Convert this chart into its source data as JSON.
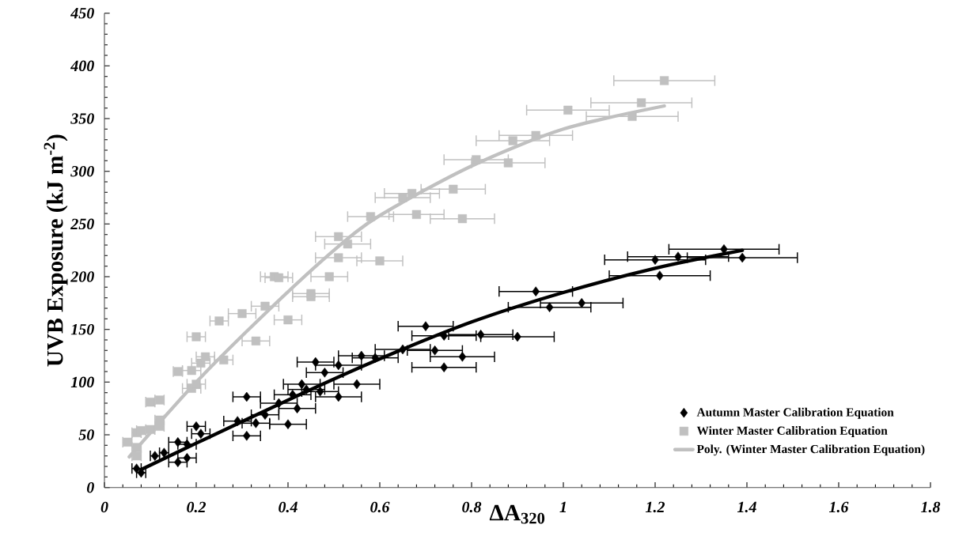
{
  "chart_data": {
    "type": "scatter",
    "xlabel": "ΔA$_{320}$",
    "ylabel": "UVB Exposure (kJ m$^{-2}$)",
    "xlim": [
      0,
      1.8
    ],
    "xticks": [
      0,
      0.2,
      0.4,
      0.6,
      0.8,
      1,
      1.2,
      1.4,
      1.6,
      1.8
    ],
    "ylim": [
      0,
      450
    ],
    "yticks": [
      0,
      50,
      100,
      150,
      200,
      250,
      300,
      350,
      400,
      450
    ],
    "legend": "bottom right",
    "series": [
      {
        "name": "Autumn Master Calibration Equation",
        "type": "scatter",
        "marker": "diamond",
        "color": "#000000",
        "x": [
          0.07,
          0.08,
          0.11,
          0.13,
          0.16,
          0.18,
          0.16,
          0.18,
          0.2,
          0.21,
          0.29,
          0.31,
          0.31,
          0.33,
          0.35,
          0.38,
          0.4,
          0.41,
          0.42,
          0.43,
          0.44,
          0.46,
          0.48,
          0.47,
          0.51,
          0.51,
          0.55,
          0.56,
          0.59,
          0.7,
          0.74,
          0.82,
          0.9,
          0.65,
          0.72,
          0.78,
          0.74,
          0.94,
          0.97,
          1.04,
          1.2,
          1.25,
          1.21,
          1.35,
          1.39
        ],
        "values": [
          18,
          14,
          30,
          33,
          43,
          41,
          24,
          28,
          58,
          51,
          63,
          86,
          49,
          61,
          69,
          80,
          60,
          88,
          75,
          98,
          93,
          119,
          109,
          91,
          86,
          116,
          98,
          125,
          123,
          153,
          144,
          145,
          143,
          131,
          130,
          124,
          114,
          186,
          171,
          175,
          216,
          219,
          201,
          226,
          218
        ],
        "xerrors": [
          0.01,
          0.01,
          0.01,
          0.01,
          0.02,
          0.02,
          0.02,
          0.02,
          0.02,
          0.02,
          0.03,
          0.03,
          0.03,
          0.03,
          0.03,
          0.04,
          0.04,
          0.04,
          0.04,
          0.04,
          0.04,
          0.04,
          0.04,
          0.04,
          0.05,
          0.05,
          0.05,
          0.05,
          0.05,
          0.06,
          0.07,
          0.07,
          0.08,
          0.06,
          0.06,
          0.07,
          0.07,
          0.08,
          0.09,
          0.09,
          0.11,
          0.11,
          0.11,
          0.12,
          0.12
        ]
      },
      {
        "name": "Winter Master Calibration Equation",
        "type": "scatter",
        "marker": "square",
        "color": "#c0c0c0",
        "x": [
          0.05,
          0.07,
          0.08,
          0.07,
          0.07,
          0.1,
          0.12,
          0.12,
          0.1,
          0.12,
          0.16,
          0.2,
          0.19,
          0.2,
          0.19,
          0.21,
          0.22,
          0.26,
          0.25,
          0.3,
          0.33,
          0.35,
          0.4,
          0.37,
          0.38,
          0.45,
          0.45,
          0.49,
          0.51,
          0.51,
          0.53,
          0.6,
          0.58,
          0.68,
          0.78,
          0.65,
          0.67,
          0.76,
          1.22,
          1.17,
          1.15,
          1.01,
          0.94,
          0.89,
          0.81,
          0.88
        ],
        "values": [
          43,
          52,
          54,
          38,
          30,
          55,
          64,
          58,
          81,
          83,
          110,
          143,
          94,
          98,
          111,
          118,
          124,
          121,
          158,
          165,
          139,
          172,
          159,
          200,
          199,
          181,
          184,
          200,
          218,
          238,
          231,
          215,
          257,
          259,
          255,
          275,
          279,
          283,
          386,
          365,
          352,
          358,
          334,
          329,
          311,
          308
        ],
        "xerrors": [
          0.01,
          0.01,
          0.01,
          0.01,
          0.01,
          0.01,
          0.01,
          0.01,
          0.01,
          0.01,
          0.01,
          0.02,
          0.02,
          0.02,
          0.02,
          0.02,
          0.02,
          0.02,
          0.02,
          0.03,
          0.03,
          0.03,
          0.03,
          0.03,
          0.03,
          0.04,
          0.04,
          0.04,
          0.05,
          0.05,
          0.05,
          0.05,
          0.05,
          0.06,
          0.07,
          0.06,
          0.06,
          0.07,
          0.11,
          0.11,
          0.1,
          0.09,
          0.08,
          0.08,
          0.07,
          0.08
        ]
      },
      {
        "name": "Poly. (Winter Master Calibration Equation)",
        "type": "line",
        "marker": "none",
        "line_style": "solid",
        "color": "#c0c0c0",
        "x": [
          0.054,
          0.2,
          0.35,
          0.5,
          0.6,
          0.8,
          1.0,
          1.22
        ],
        "values": [
          29,
          100,
          165,
          225,
          258,
          305,
          340,
          362
        ]
      },
      {
        "type": "line",
        "marker": "none",
        "line_style": "solid",
        "color": "#000000",
        "x": [
          0.08,
          0.2,
          0.43,
          0.6,
          0.8,
          1.0,
          1.2,
          1.39
        ],
        "values": [
          17,
          42,
          89,
          122,
          157,
          185,
          208,
          225
        ]
      }
    ]
  }
}
